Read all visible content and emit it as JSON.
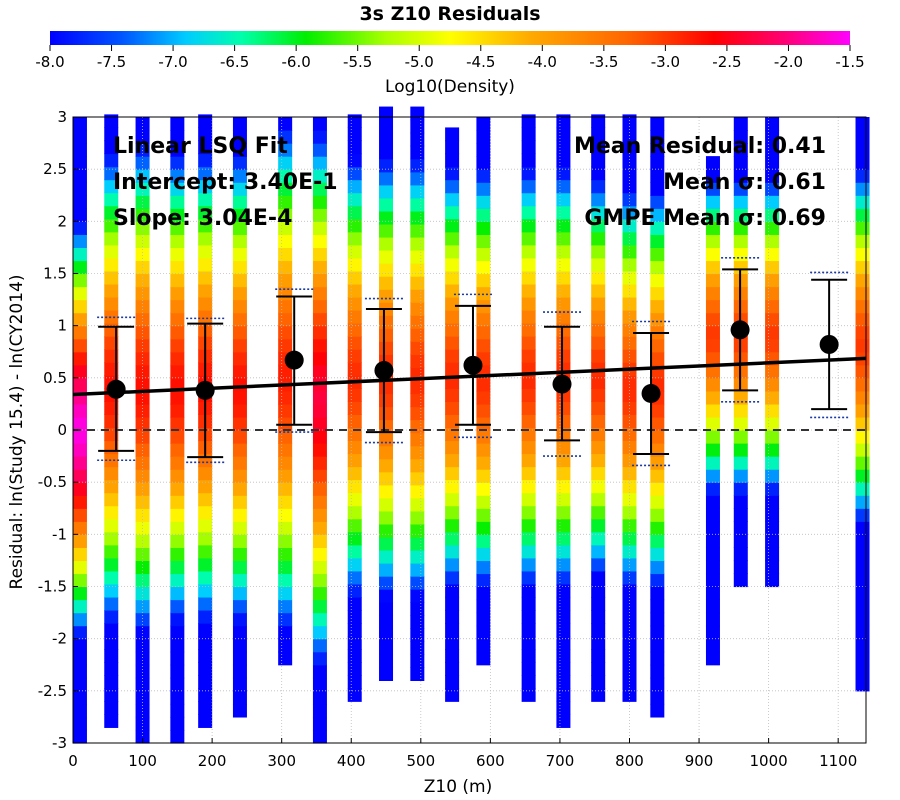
{
  "chart_data": {
    "type": "scatter",
    "title": "3s Z10 Residuals",
    "xlabel": "Z10 (m)",
    "ylabel": "Residual: ln(Study 15.4) - ln(CY2014)",
    "xlim": [
      0,
      1140
    ],
    "ylim": [
      -3,
      3
    ],
    "x_ticks": [
      0,
      100,
      200,
      300,
      400,
      500,
      600,
      700,
      800,
      900,
      1000,
      1100
    ],
    "y_ticks": [
      -3,
      -2.5,
      -2,
      -1.5,
      -1,
      -0.5,
      0,
      0.5,
      1,
      1.5,
      2,
      2.5,
      3
    ],
    "grid": true,
    "colorbar": {
      "label": "Log10(Density)",
      "range": [
        -8.0,
        -1.5
      ],
      "ticks": [
        "-8.0",
        "-7.5",
        "-7.0",
        "-6.5",
        "-6.0",
        "-5.5",
        "-5.0",
        "-4.5",
        "-4.0",
        "-3.5",
        "-3.0",
        "-2.5",
        "-2.0",
        "-1.5"
      ]
    },
    "annotations": {
      "left": [
        "Linear LSQ Fit",
        "Intercept: 3.40E-1",
        "Slope: 3.04E-4"
      ],
      "right": [
        "Mean Residual: 0.41",
        "Mean σ: 0.61",
        "GMPE Mean σ: 0.69"
      ]
    },
    "fit_line": {
      "intercept": 0.34,
      "slope": 0.000304
    },
    "zero_line": 0,
    "density_columns": [
      {
        "x": 10,
        "ymin": -3.0,
        "ymax": 3.0,
        "peak": 0.0,
        "scale": 1.8,
        "peak_val": -1.6
      },
      {
        "x": 55,
        "ymin": -2.85,
        "ymax": 3.0,
        "peak": 0.4,
        "scale": 2.3,
        "peak_val": -2.7
      },
      {
        "x": 100,
        "ymin": -3.0,
        "ymax": 3.0,
        "peak": 0.4,
        "scale": 2.4,
        "peak_val": -2.7
      },
      {
        "x": 150,
        "ymin": -3.0,
        "ymax": 3.0,
        "peak": 0.4,
        "scale": 2.3,
        "peak_val": -2.7
      },
      {
        "x": 190,
        "ymin": -2.85,
        "ymax": 3.0,
        "peak": 0.4,
        "scale": 2.3,
        "peak_val": -2.7
      },
      {
        "x": 240,
        "ymin": -2.75,
        "ymax": 3.0,
        "peak": 0.4,
        "scale": 2.3,
        "peak_val": -2.7
      },
      {
        "x": 305,
        "ymin": -2.25,
        "ymax": 3.0,
        "peak": 0.5,
        "scale": 2.5,
        "peak_val": -2.8
      },
      {
        "x": 355,
        "ymin": -3.0,
        "ymax": 3.0,
        "peak": 0.3,
        "scale": 2.5,
        "peak_val": -2.3
      },
      {
        "x": 405,
        "ymin": -2.6,
        "ymax": 3.0,
        "peak": 0.5,
        "scale": 2.2,
        "peak_val": -2.9
      },
      {
        "x": 450,
        "ymin": -2.4,
        "ymax": 3.0,
        "peak": 0.5,
        "scale": 2.2,
        "peak_val": -2.9
      },
      {
        "x": 495,
        "ymin": -2.4,
        "ymax": 3.0,
        "peak": 0.5,
        "scale": 2.2,
        "peak_val": -2.9
      },
      {
        "x": 545,
        "ymin": -2.6,
        "ymax": 2.9,
        "peak": 0.5,
        "scale": 2.1,
        "peak_val": -2.9
      },
      {
        "x": 590,
        "ymin": -2.25,
        "ymax": 3.0,
        "peak": 0.5,
        "scale": 2.1,
        "peak_val": -2.9
      },
      {
        "x": 655,
        "ymin": -2.6,
        "ymax": 3.0,
        "peak": 0.5,
        "scale": 2.1,
        "peak_val": -2.9
      },
      {
        "x": 705,
        "ymin": -2.85,
        "ymax": 3.0,
        "peak": 0.5,
        "scale": 2.1,
        "peak_val": -2.9
      },
      {
        "x": 755,
        "ymin": -2.6,
        "ymax": 3.0,
        "peak": 0.5,
        "scale": 2.0,
        "peak_val": -2.9
      },
      {
        "x": 800,
        "ymin": -2.6,
        "ymax": 3.0,
        "peak": 0.4,
        "scale": 2.0,
        "peak_val": -2.9
      },
      {
        "x": 840,
        "ymin": -2.75,
        "ymax": 3.0,
        "peak": 0.4,
        "scale": 2.0,
        "peak_val": -2.9
      },
      {
        "x": 920,
        "ymin": -2.25,
        "ymax": 2.6,
        "peak": 0.9,
        "scale": 1.6,
        "peak_val": -3.0
      },
      {
        "x": 960,
        "ymin": -1.5,
        "ymax": 3.0,
        "peak": 0.9,
        "scale": 1.6,
        "peak_val": -3.0
      },
      {
        "x": 1005,
        "ymin": -1.5,
        "ymax": 3.0,
        "peak": 0.9,
        "scale": 1.6,
        "peak_val": -3.0
      },
      {
        "x": 1135,
        "ymin": -2.5,
        "ymax": 3.0,
        "peak": 0.8,
        "scale": 1.8,
        "peak_val": -3.0
      }
    ],
    "bins": [
      {
        "x": 62,
        "mean": 0.39,
        "lower": -0.2,
        "upper": 0.99,
        "gmpe_lower": -0.29,
        "gmpe_upper": 1.08
      },
      {
        "x": 190,
        "mean": 0.38,
        "lower": -0.26,
        "upper": 1.02,
        "gmpe_lower": -0.31,
        "gmpe_upper": 1.07
      },
      {
        "x": 318,
        "mean": 0.67,
        "lower": 0.05,
        "upper": 1.28,
        "gmpe_lower": -0.02,
        "gmpe_upper": 1.35
      },
      {
        "x": 447,
        "mean": 0.57,
        "lower": -0.02,
        "upper": 1.16,
        "gmpe_lower": -0.12,
        "gmpe_upper": 1.26
      },
      {
        "x": 575,
        "mean": 0.62,
        "lower": 0.05,
        "upper": 1.19,
        "gmpe_lower": -0.07,
        "gmpe_upper": 1.3
      },
      {
        "x": 703,
        "mean": 0.44,
        "lower": -0.1,
        "upper": 0.99,
        "gmpe_lower": -0.25,
        "gmpe_upper": 1.13
      },
      {
        "x": 831,
        "mean": 0.35,
        "lower": -0.23,
        "upper": 0.93,
        "gmpe_lower": -0.34,
        "gmpe_upper": 1.04
      },
      {
        "x": 959,
        "mean": 0.96,
        "lower": 0.38,
        "upper": 1.54,
        "gmpe_lower": 0.27,
        "gmpe_upper": 1.65
      },
      {
        "x": 1087,
        "mean": 0.82,
        "lower": 0.2,
        "upper": 1.44,
        "gmpe_lower": 0.12,
        "gmpe_upper": 1.51
      }
    ]
  }
}
